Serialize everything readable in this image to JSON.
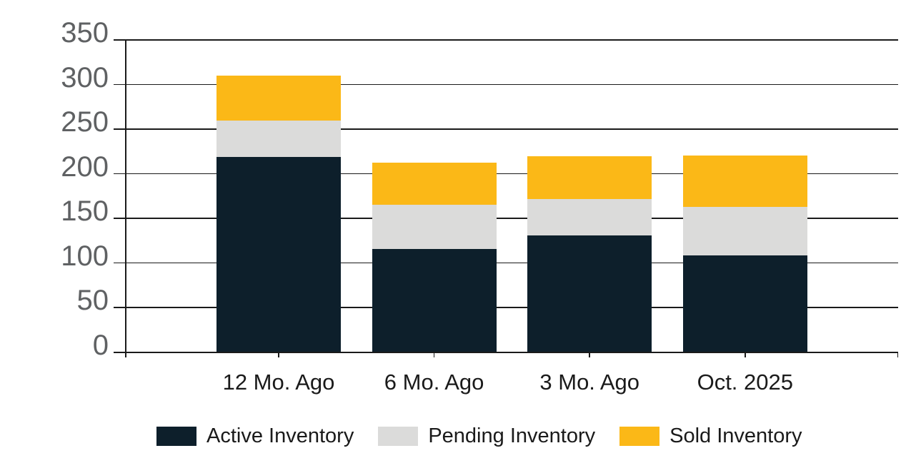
{
  "chart_data": {
    "type": "bar",
    "stacked": true,
    "title": "",
    "categories": [
      "12 Mo. Ago",
      "6 Mo. Ago",
      "3 Mo. Ago",
      "Oct. 2025"
    ],
    "series": [
      {
        "name": "Active Inventory",
        "color": "#0d1f2b",
        "values": [
          218,
          115,
          130,
          108
        ]
      },
      {
        "name": "Pending Inventory",
        "color": "#dbdbda",
        "values": [
          41,
          50,
          41,
          54
        ]
      },
      {
        "name": "Sold Inventory",
        "color": "#fbb817",
        "values": [
          50,
          47,
          48,
          58
        ]
      }
    ],
    "stack_totals": [
      309,
      212,
      219,
      220
    ],
    "y_axis": {
      "min": 0,
      "max": 350,
      "step": 50,
      "tick_labels": [
        "0",
        "50",
        "100",
        "150",
        "200",
        "250",
        "300",
        "350"
      ]
    },
    "grid": true,
    "legend_position": "bottom"
  },
  "colors": {
    "background": "#ffffff",
    "gridline": "#1a1a1a",
    "y_tick_text": "#5f6163",
    "x_tick_text": "#1a1a1a",
    "legend_text": "#1a1a1a"
  }
}
